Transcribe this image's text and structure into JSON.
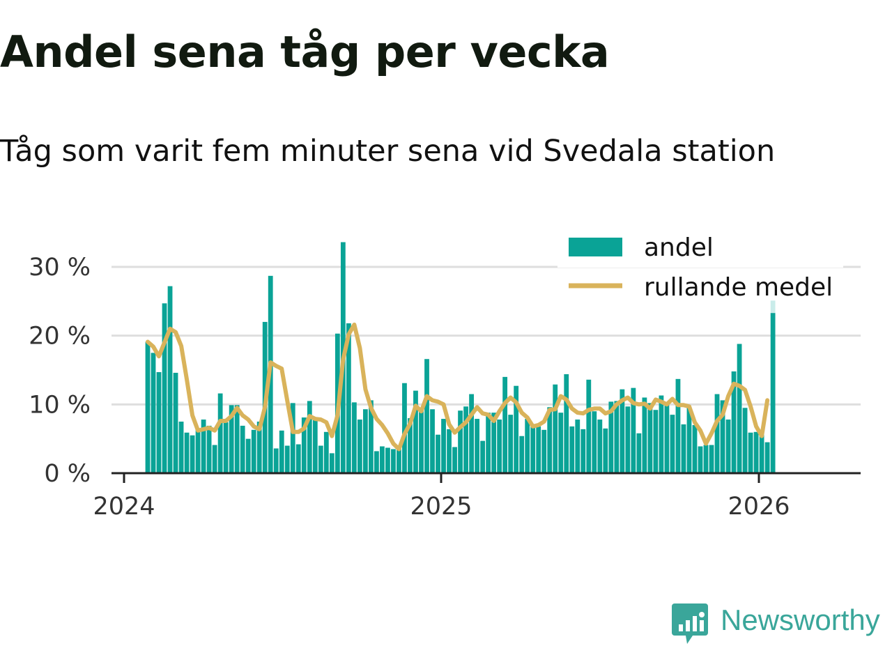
{
  "header": {
    "title": "Andel sena tåg per vecka",
    "subtitle": "Tåg som varit fem minuter sena vid Svedala station"
  },
  "brand": {
    "name": "Newsworthy",
    "color": "#3aa69a"
  },
  "colors": {
    "bar": "#0aa396",
    "bar_partial": "#c9ecea",
    "line": "#d9b35b",
    "grid": "#dedede"
  },
  "chart_data": {
    "type": "bar",
    "x_label": "",
    "y_label": "",
    "y_ticks": [
      "0 %",
      "10 %",
      "20 %",
      "30 %"
    ],
    "ylim": [
      0,
      30
    ],
    "x_ticks": [
      "2024",
      "2025",
      "2026"
    ],
    "grid": true,
    "legend_placement": "top-right",
    "series": [
      {
        "name": "andel",
        "kind": "bar",
        "values": [
          19.1,
          17.5,
          14.7,
          24.7,
          27.2,
          14.6,
          7.5,
          5.9,
          5.5,
          6.3,
          7.8,
          6.9,
          4.1,
          11.6,
          7.4,
          9.9,
          9.9,
          6.9,
          5.0,
          6.3,
          7.5,
          22.0,
          28.7,
          3.6,
          6.2,
          4.0,
          10.2,
          4.2,
          8.1,
          10.5,
          7.7,
          4.0,
          6.0,
          2.9,
          20.3,
          33.6,
          21.8,
          10.3,
          7.8,
          9.3,
          10.6,
          3.2,
          3.9,
          3.7,
          3.5,
          3.5,
          13.1,
          8.0,
          12.0,
          9.5,
          16.6,
          9.3,
          5.6,
          7.9,
          6.4,
          3.8,
          9.1,
          9.7,
          11.5,
          7.9,
          4.7,
          8.8,
          8.8,
          7.8,
          14.0,
          8.5,
          12.7,
          5.4,
          7.9,
          6.9,
          6.8,
          6.3,
          9.6,
          12.9,
          8.8,
          14.4,
          6.8,
          7.8,
          6.4,
          13.6,
          9.0,
          7.8,
          6.5,
          10.4,
          10.5,
          12.2,
          9.7,
          12.4,
          5.8,
          11.0,
          10.2,
          9.2,
          11.3,
          10.1,
          8.5,
          13.7,
          7.1,
          9.5,
          7.0,
          3.9,
          4.1,
          4.1,
          11.5,
          10.6,
          7.8,
          14.8,
          18.8,
          9.5,
          5.9,
          6.0,
          5.6,
          4.5,
          23.3
        ]
      },
      {
        "name": "rullande medel",
        "kind": "line",
        "values": [
          19.1,
          18.4,
          17.0,
          19.0,
          21.0,
          20.5,
          18.5,
          13.6,
          8.4,
          6.2,
          6.4,
          6.6,
          6.2,
          7.6,
          7.6,
          8.3,
          9.5,
          8.4,
          7.8,
          6.8,
          6.4,
          9.6,
          16.1,
          15.6,
          15.2,
          10.5,
          6.0,
          6.0,
          6.5,
          8.3,
          7.9,
          7.8,
          7.4,
          5.4,
          8.4,
          16.5,
          20.2,
          21.6,
          18.2,
          12.2,
          9.5,
          7.9,
          7.0,
          5.8,
          4.3,
          3.5,
          5.7,
          7.2,
          9.8,
          9.0,
          11.2,
          10.6,
          10.4,
          10.0,
          7.1,
          5.9,
          6.7,
          7.4,
          8.5,
          9.6,
          8.7,
          8.5,
          7.6,
          9.0,
          10.2,
          11.0,
          10.3,
          8.8,
          8.1,
          6.8,
          7.0,
          7.5,
          9.2,
          9.3,
          11.2,
          10.7,
          9.4,
          8.8,
          8.7,
          9.2,
          9.4,
          9.4,
          8.7,
          9.0,
          10.0,
          10.6,
          11.0,
          10.2,
          10.0,
          10.1,
          9.4,
          10.7,
          10.4,
          10.0,
          10.8,
          9.9,
          9.9,
          9.7,
          7.4,
          6.2,
          4.3,
          5.8,
          7.6,
          8.5,
          11.2,
          13.0,
          12.7,
          12.1,
          9.7,
          6.8,
          5.4,
          10.6
        ]
      }
    ],
    "partial_last_bar": {
      "observed": 23.3,
      "upper": 25.1
    }
  }
}
